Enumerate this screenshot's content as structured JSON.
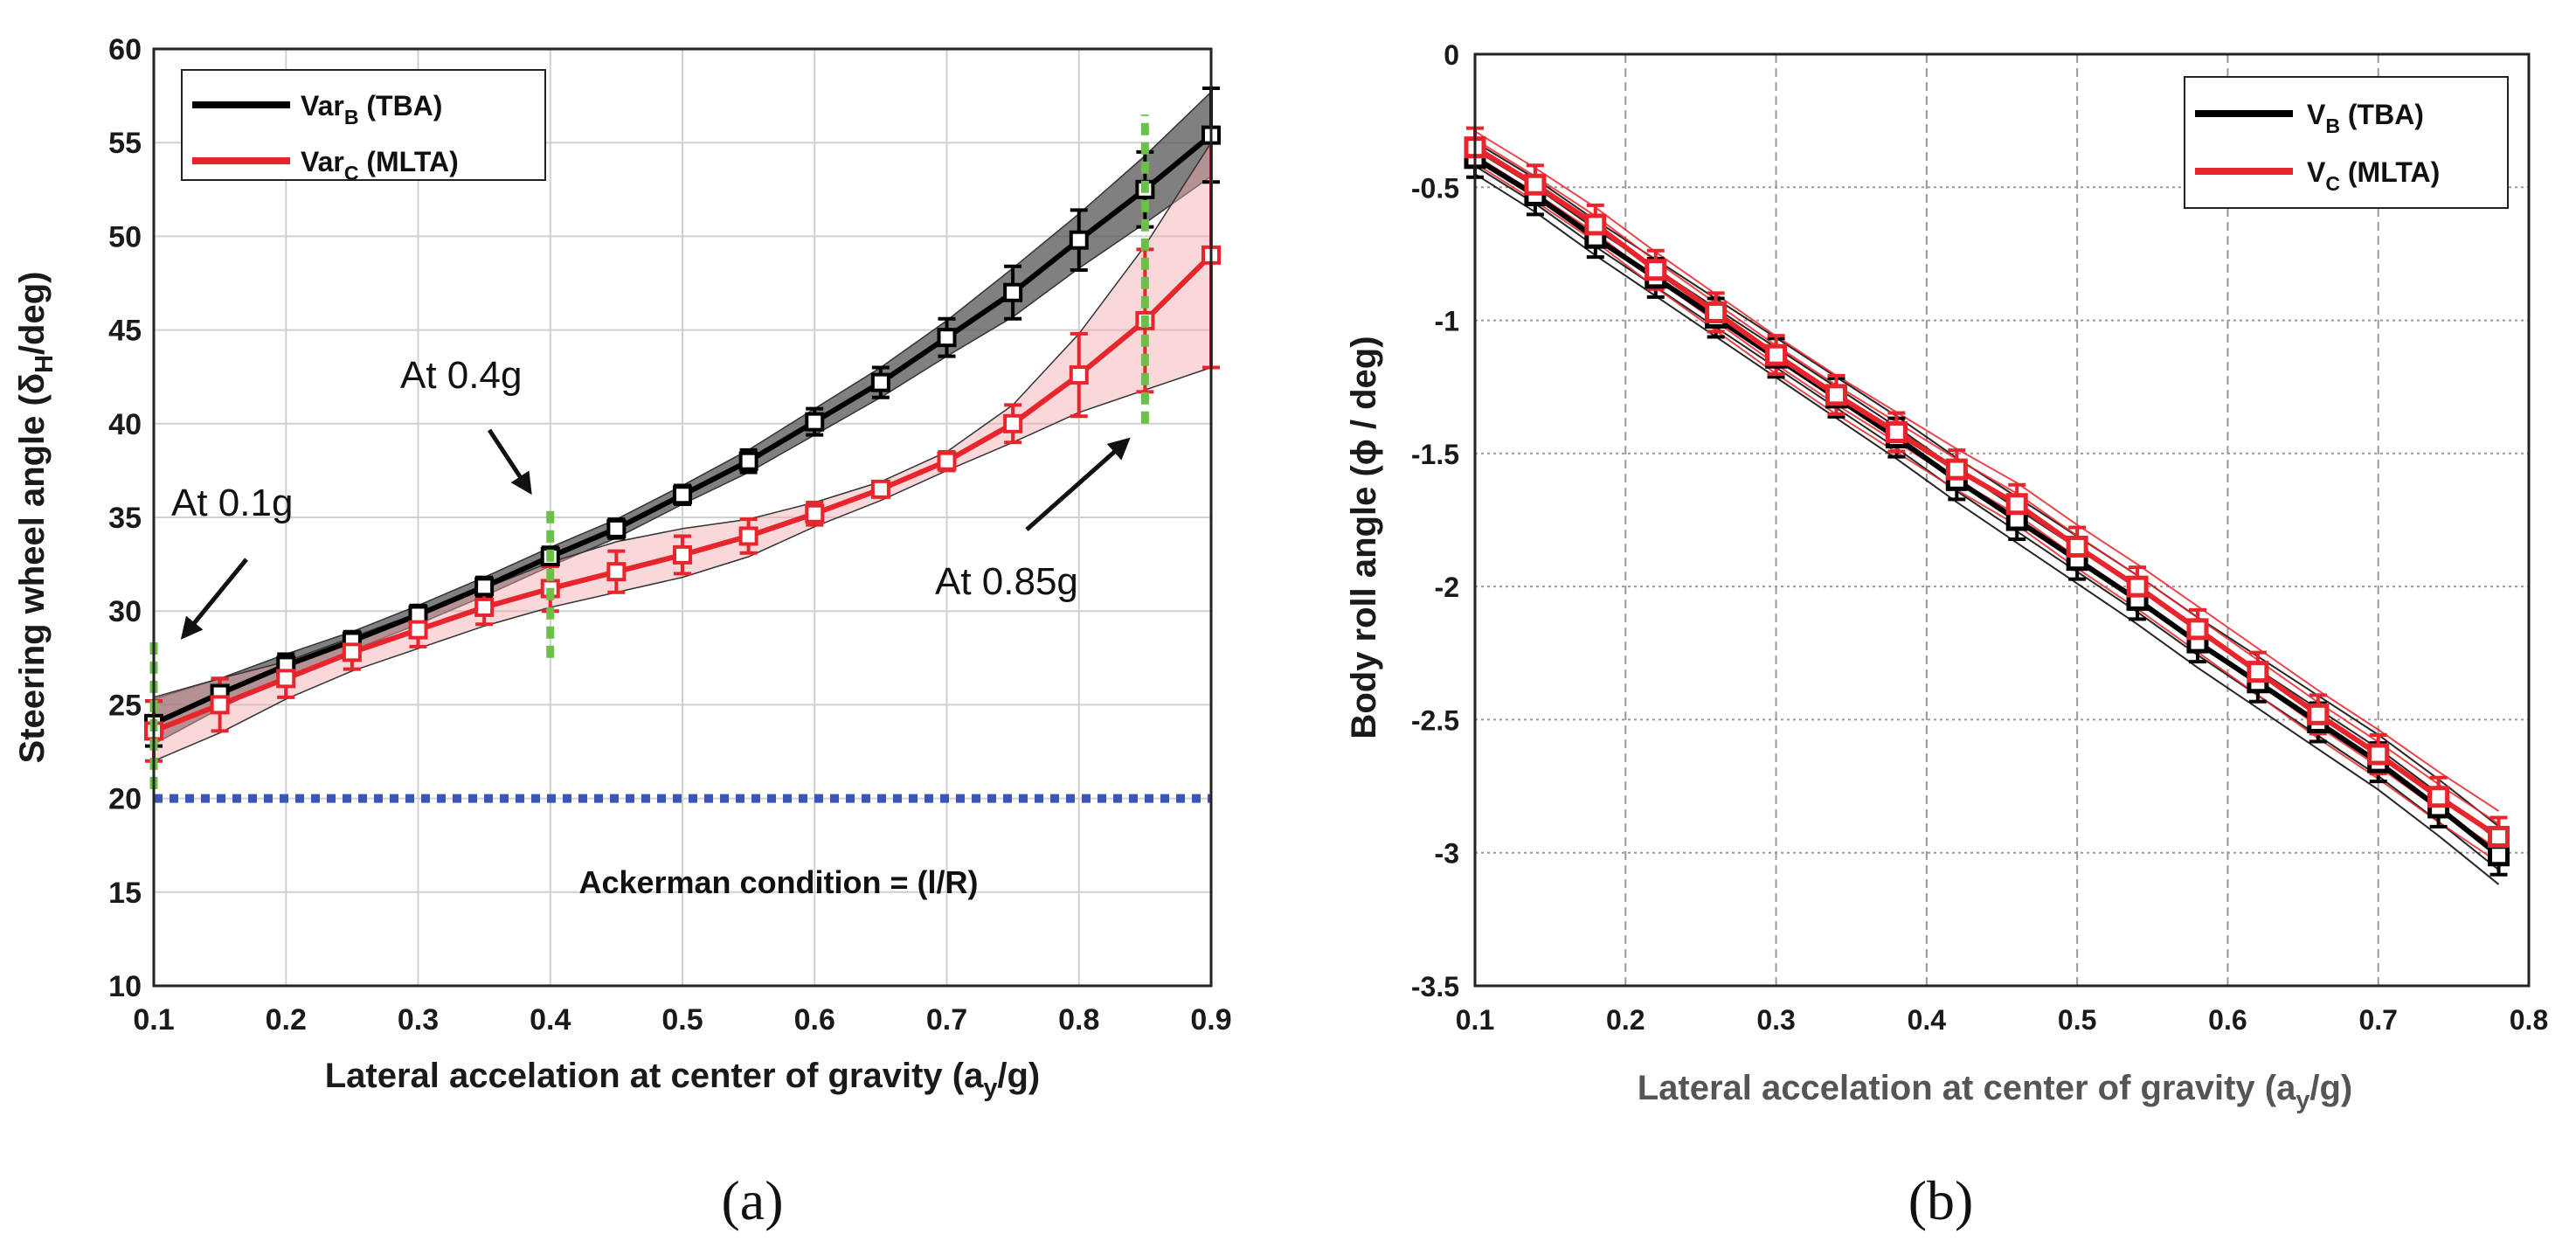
{
  "chart_data": [
    {
      "type": "line",
      "panel_label": "(a)",
      "xlabel": "Lateral accelation at center of gravity (a",
      "xlabel_sub": "y",
      "xlabel_end": "/g)",
      "ylabel": "Steering wheel angle (δ",
      "ylabel_sub": "H",
      "ylabel_end": "/deg)",
      "xlim": [
        0.1,
        0.9
      ],
      "ylim": [
        10,
        60
      ],
      "xticks": [
        "0.1",
        "0.2",
        "0.3",
        "0.4",
        "0.5",
        "0.6",
        "0.7",
        "0.8",
        "0.9"
      ],
      "yticks": [
        "10",
        "15",
        "20",
        "25",
        "30",
        "35",
        "40",
        "45",
        "50",
        "55",
        "60"
      ],
      "grid": true,
      "legend_position": "top-left",
      "series": [
        {
          "name": "Var",
          "name_sub": "B",
          "name_end": " (TBA)",
          "color": "#000000",
          "band_color": "#555555",
          "x": [
            0.1,
            0.15,
            0.2,
            0.25,
            0.3,
            0.35,
            0.4,
            0.45,
            0.5,
            0.55,
            0.6,
            0.65,
            0.7,
            0.75,
            0.8,
            0.85,
            0.9
          ],
          "values": [
            24.0,
            25.6,
            27.1,
            28.4,
            29.8,
            31.3,
            32.9,
            34.4,
            36.2,
            38.0,
            40.1,
            42.2,
            44.6,
            47.0,
            49.8,
            52.5,
            55.4
          ],
          "err": [
            1.2,
            0.8,
            0.6,
            0.5,
            0.5,
            0.5,
            0.5,
            0.5,
            0.5,
            0.6,
            0.7,
            0.8,
            1.0,
            1.4,
            1.6,
            2.0,
            2.5
          ],
          "band_upper": [
            25.3,
            26.4,
            27.7,
            28.9,
            30.3,
            31.8,
            33.4,
            34.9,
            36.7,
            38.6,
            40.8,
            43.0,
            45.5,
            48.3,
            51.2,
            54.3,
            57.7
          ],
          "band_lower": [
            22.9,
            24.8,
            26.5,
            27.9,
            29.3,
            30.8,
            32.4,
            33.9,
            35.7,
            37.4,
            39.4,
            41.4,
            43.6,
            45.7,
            48.3,
            50.7,
            53.2
          ]
        },
        {
          "name": "Var",
          "name_sub": "C",
          "name_end": " (MLTA)",
          "color": "#e8242c",
          "band_color": "#f4a9ad",
          "x": [
            0.1,
            0.15,
            0.2,
            0.25,
            0.3,
            0.35,
            0.4,
            0.45,
            0.5,
            0.55,
            0.6,
            0.65,
            0.7,
            0.75,
            0.8,
            0.85,
            0.9
          ],
          "values": [
            23.6,
            25.0,
            26.4,
            27.8,
            29.0,
            30.2,
            31.2,
            32.1,
            33.0,
            34.0,
            35.2,
            36.5,
            38.0,
            40.0,
            42.6,
            45.5,
            49.0
          ],
          "err": [
            1.6,
            1.4,
            1.0,
            0.9,
            0.9,
            0.9,
            1.2,
            1.1,
            1.0,
            0.9,
            0.6,
            0.4,
            0.5,
            1.0,
            2.2,
            3.8,
            6.0
          ],
          "band_upper": [
            25.4,
            26.4,
            27.3,
            28.6,
            29.9,
            31.2,
            32.6,
            33.7,
            34.4,
            34.9,
            35.8,
            36.9,
            38.5,
            41.0,
            44.8,
            49.5,
            55.0
          ],
          "band_lower": [
            22.0,
            23.5,
            25.3,
            26.8,
            28.0,
            29.2,
            30.2,
            31.0,
            31.8,
            32.9,
            34.5,
            35.9,
            37.5,
            39.0,
            40.6,
            41.8,
            43.0
          ]
        }
      ],
      "reference_line": {
        "label": "Ackerman condition = (l/R)",
        "y": 20,
        "color": "#3a57b8"
      },
      "markers": [
        {
          "x": 0.1,
          "y_from": 20.5,
          "y_to": 28.5,
          "label": "At 0.1g",
          "color": "#6cc04a"
        },
        {
          "x": 0.4,
          "y_from": 27.5,
          "y_to": 35.5,
          "label": "At 0.4g",
          "color": "#6cc04a"
        },
        {
          "x": 0.85,
          "y_from": 40.0,
          "y_to": 56.5,
          "label": "At 0.85g",
          "color": "#6cc04a"
        }
      ]
    },
    {
      "type": "line",
      "panel_label": "(b)",
      "xlabel": "Lateral accelation at center of gravity (a",
      "xlabel_sub": "y",
      "xlabel_end": "/g)",
      "ylabel": "Body roll angle (ϕ / deg)",
      "xlim": [
        0.1,
        0.8
      ],
      "ylim": [
        -3.5,
        0
      ],
      "xticks": [
        "0.1",
        "0.2",
        "0.3",
        "0.4",
        "0.5",
        "0.6",
        "0.7",
        "0.8"
      ],
      "yticks": [
        "-3.5",
        "-3",
        "-2.5",
        "-2",
        "-1.5",
        "-1",
        "-0.5",
        "0"
      ],
      "grid": true,
      "legend_position": "top-right",
      "series": [
        {
          "name": "V",
          "name_sub": "B",
          "name_end": " (TBA)",
          "color": "#000000",
          "x": [
            0.1,
            0.14,
            0.18,
            0.22,
            0.26,
            0.3,
            0.34,
            0.38,
            0.42,
            0.46,
            0.5,
            0.54,
            0.58,
            0.62,
            0.66,
            0.7,
            0.74,
            0.78
          ],
          "values": [
            -0.39,
            -0.53,
            -0.69,
            -0.84,
            -0.99,
            -1.14,
            -1.29,
            -1.44,
            -1.6,
            -1.75,
            -1.9,
            -2.05,
            -2.21,
            -2.36,
            -2.51,
            -2.66,
            -2.83,
            -3.01
          ]
        },
        {
          "name": "V",
          "name_sub": "C",
          "name_end": " (MLTA)",
          "color": "#e8242c",
          "x": [
            0.1,
            0.14,
            0.18,
            0.22,
            0.26,
            0.3,
            0.34,
            0.38,
            0.42,
            0.46,
            0.5,
            0.54,
            0.58,
            0.62,
            0.66,
            0.7,
            0.74,
            0.78
          ],
          "values": [
            -0.35,
            -0.49,
            -0.64,
            -0.81,
            -0.97,
            -1.13,
            -1.28,
            -1.42,
            -1.56,
            -1.69,
            -1.85,
            -2.0,
            -2.16,
            -2.32,
            -2.48,
            -2.63,
            -2.79,
            -2.94
          ]
        }
      ]
    }
  ]
}
